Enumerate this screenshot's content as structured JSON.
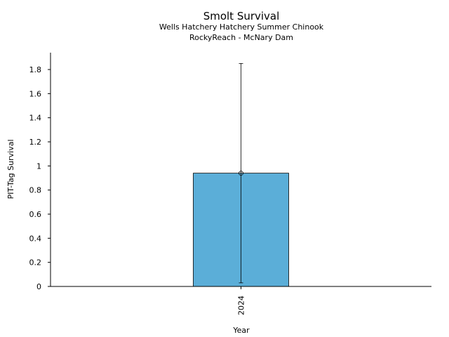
{
  "chart_data": {
    "type": "bar",
    "title": "Smolt Survival",
    "subtitle": [
      "Wells Hatchery Hatchery Summer Chinook",
      "RockyReach - McNary Dam"
    ],
    "xlabel": "Year",
    "ylabel": "PIT-Tag Survival",
    "categories": [
      "2024"
    ],
    "values": [
      0.94
    ],
    "error_low": [
      0.03
    ],
    "error_high": [
      1.85
    ],
    "ylim": [
      0,
      1.94
    ],
    "yticks": [
      0,
      0.2,
      0.4,
      0.6,
      0.8,
      1,
      1.2,
      1.4,
      1.6,
      1.8
    ],
    "ytick_labels": [
      "0",
      "0.2",
      "0.4",
      "0.6",
      "0.8",
      "1",
      "1.2",
      "1.4",
      "1.6",
      "1.8"
    ],
    "bar_color": "#5BAED8",
    "grid": false,
    "legend": "none"
  }
}
